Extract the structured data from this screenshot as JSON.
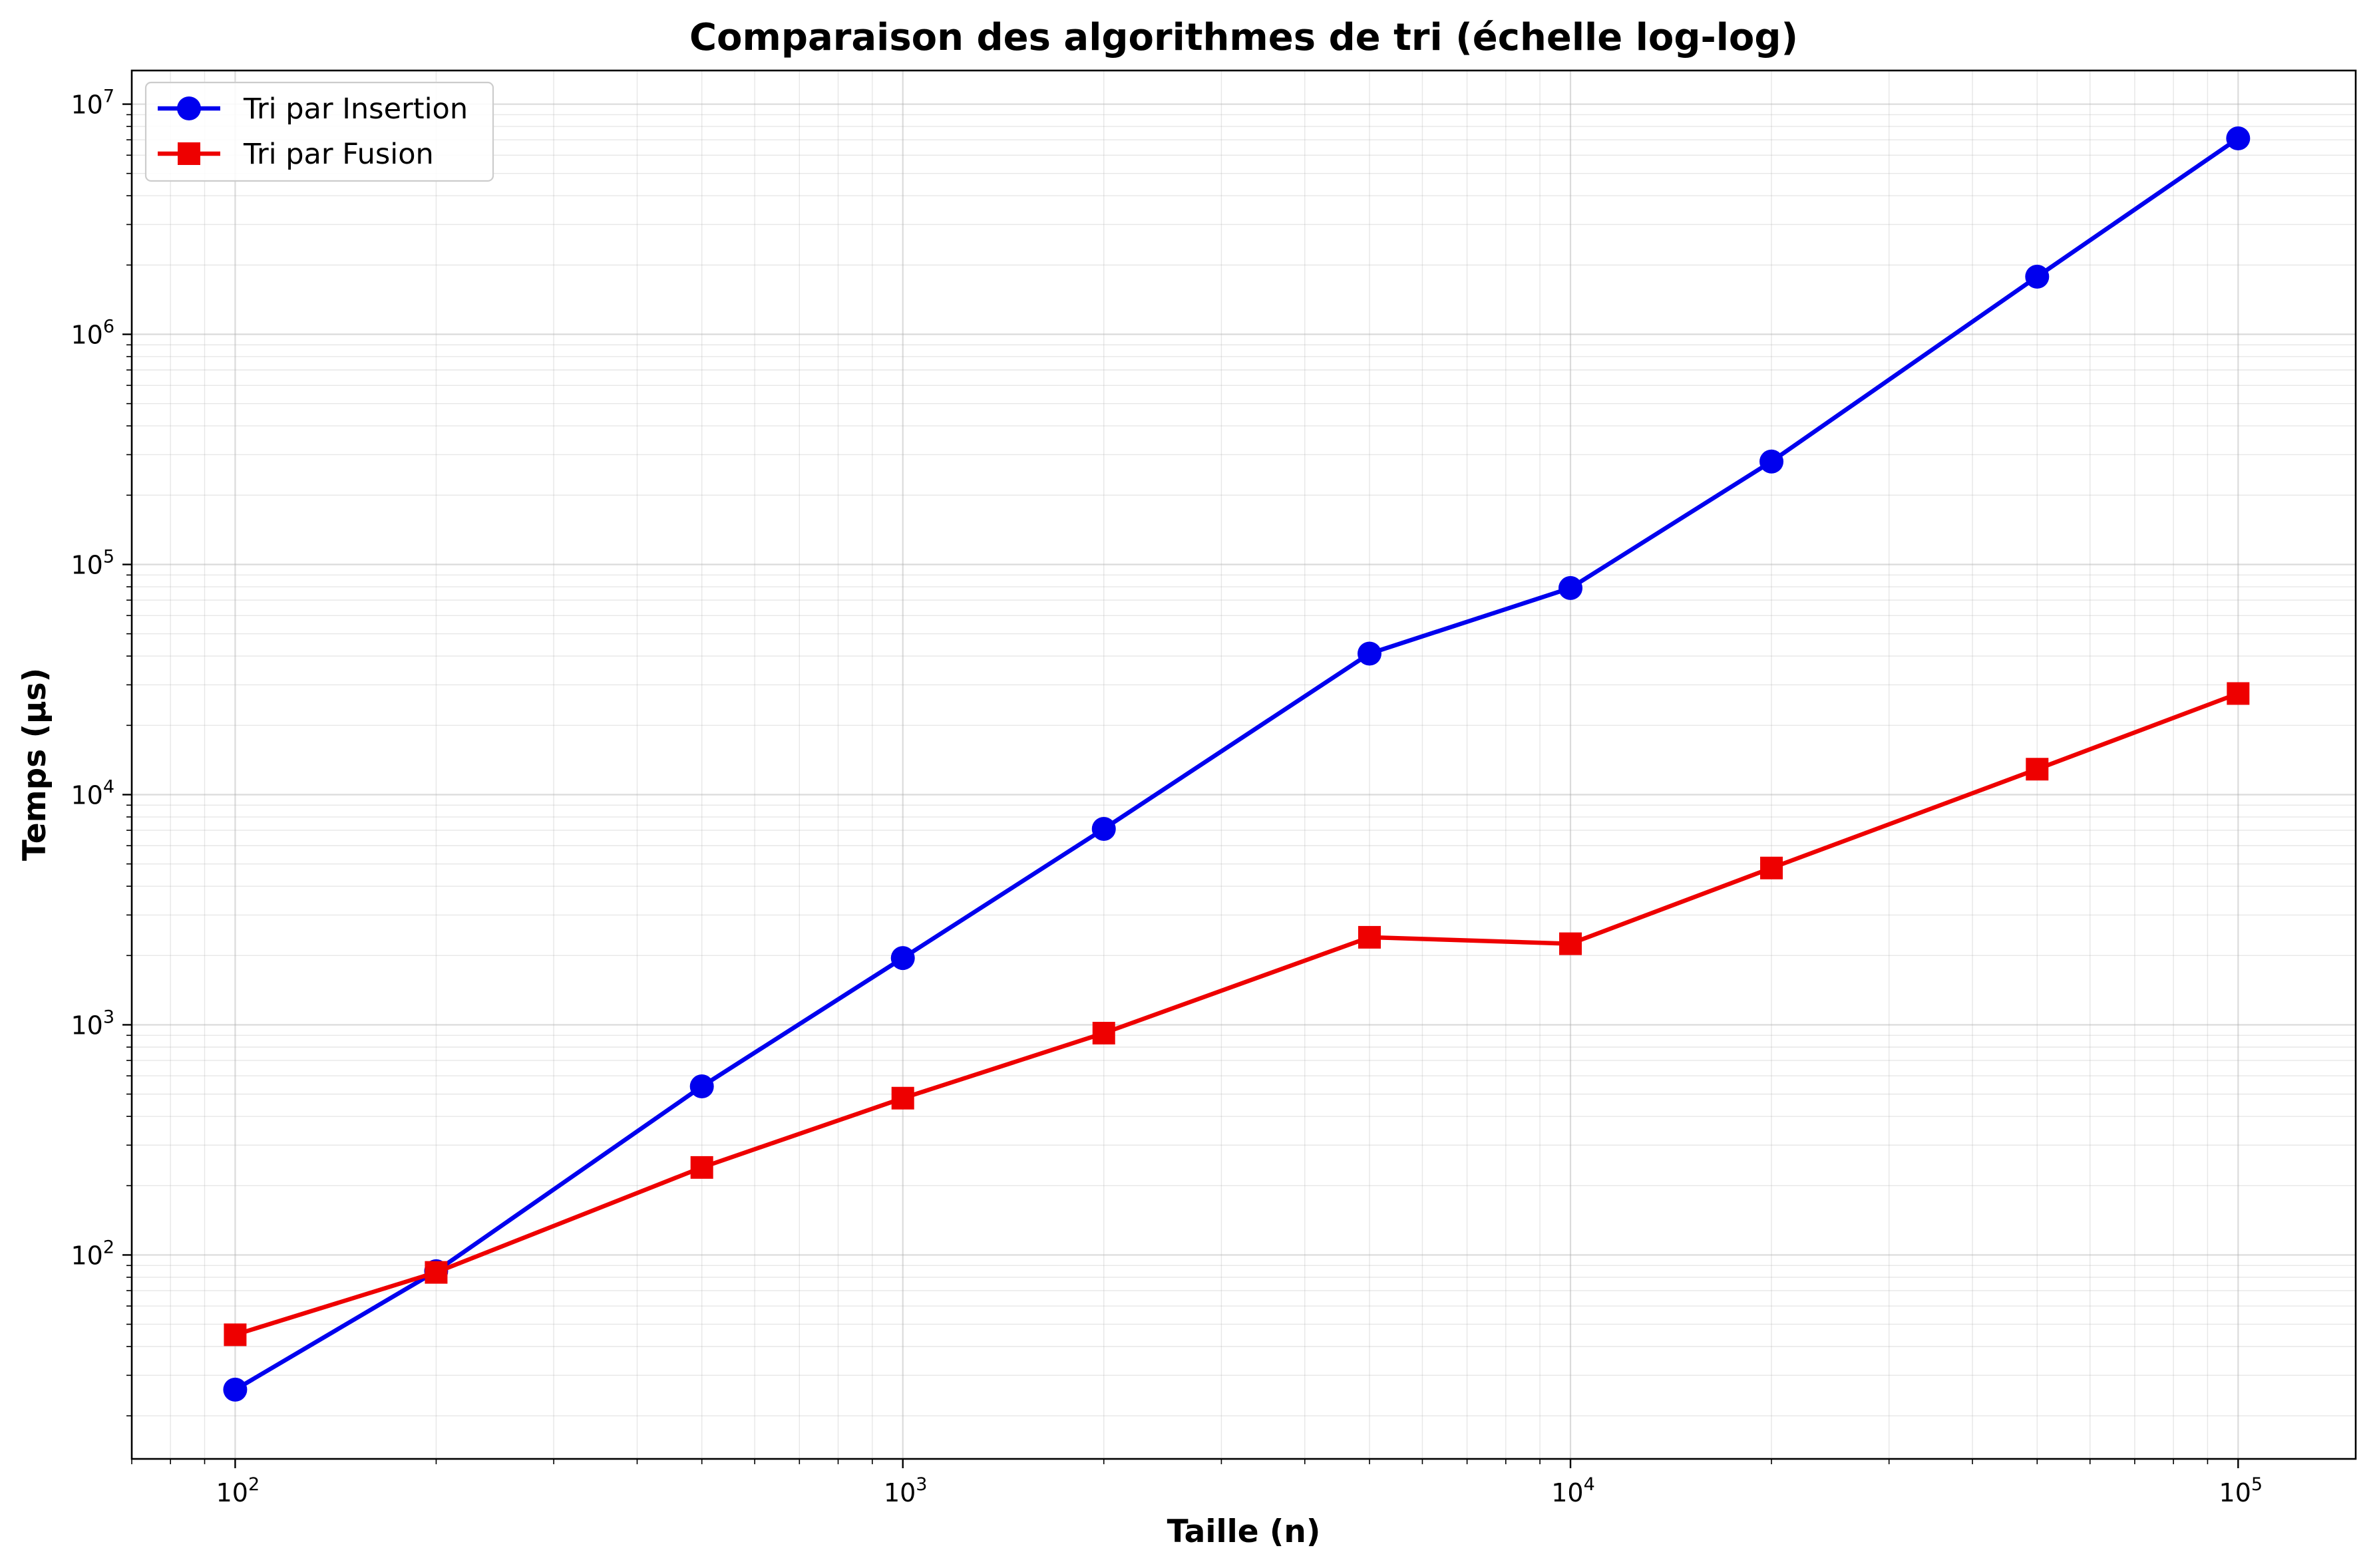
{
  "chart_data": {
    "type": "line",
    "title": "Comparaison des algorithmes de tri (échelle log-log)",
    "xlabel": "Taille (n)",
    "ylabel": "Temps (µs)",
    "xscale": "log",
    "yscale": "log",
    "xlim": [
      70,
      150000
    ],
    "ylim": [
      13,
      14000000
    ],
    "grid": true,
    "legend_position": "top-left",
    "x": [
      100,
      200,
      500,
      1000,
      2000,
      5000,
      10000,
      20000,
      50000,
      100000
    ],
    "x_ticks": [
      {
        "value": 100,
        "base": "10",
        "exp": "2"
      },
      {
        "value": 1000,
        "base": "10",
        "exp": "3"
      },
      {
        "value": 10000,
        "base": "10",
        "exp": "4"
      },
      {
        "value": 100000,
        "base": "10",
        "exp": "5"
      }
    ],
    "y_ticks": [
      {
        "value": 100,
        "base": "10",
        "exp": "2"
      },
      {
        "value": 1000,
        "base": "10",
        "exp": "3"
      },
      {
        "value": 10000,
        "base": "10",
        "exp": "4"
      },
      {
        "value": 100000,
        "base": "10",
        "exp": "5"
      },
      {
        "value": 1000000,
        "base": "10",
        "exp": "6"
      },
      {
        "value": 10000000,
        "base": "10",
        "exp": "7"
      }
    ],
    "series": [
      {
        "name": "Tri par Insertion",
        "color": "#0000ee",
        "marker": "circle",
        "values": [
          26,
          85,
          540,
          1950,
          7100,
          41000,
          79000,
          280000,
          1780000,
          7100000
        ]
      },
      {
        "name": "Tri par Fusion",
        "color": "#ee0000",
        "marker": "square",
        "values": [
          45,
          84,
          240,
          480,
          920,
          2400,
          2250,
          4800,
          12900,
          27500
        ]
      }
    ]
  }
}
